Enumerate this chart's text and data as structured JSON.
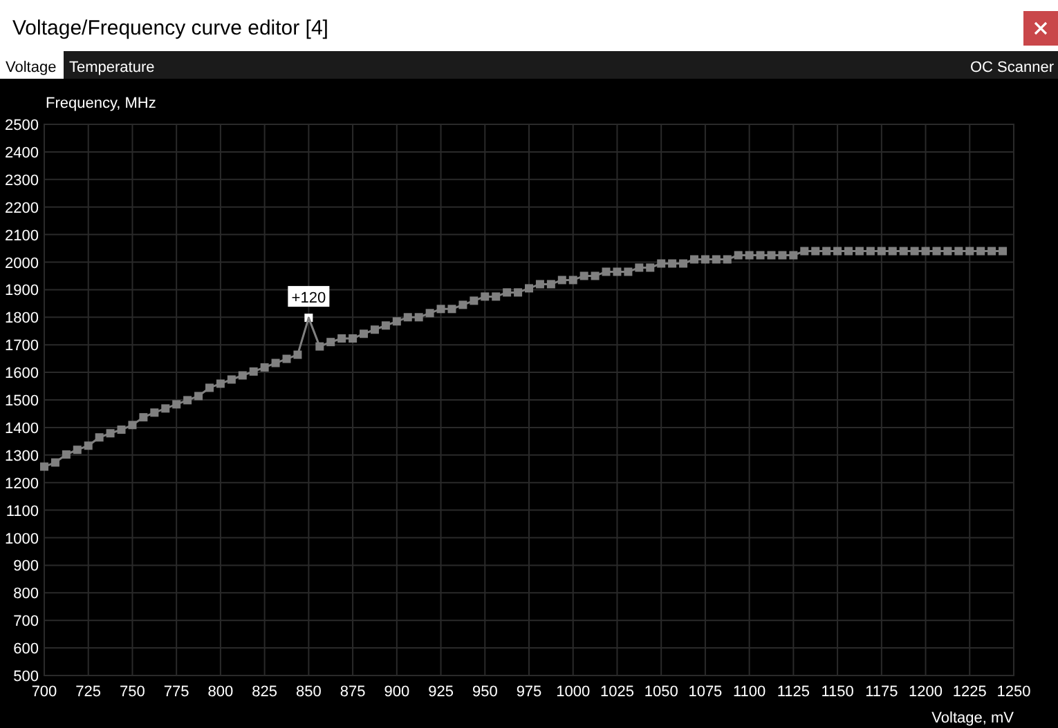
{
  "chart_data": {
    "type": "line",
    "title": "Voltage/Frequency curve editor [4]",
    "xlabel": "Voltage, mV",
    "ylabel": "Frequency, MHz",
    "annotations": [
      "Voltage",
      "Temperature",
      "OC Scanner",
      {
        "text": "+120",
        "x": 850,
        "y": 1798
      }
    ],
    "xlim": [
      700,
      1250
    ],
    "xticks": [
      700,
      725,
      750,
      775,
      800,
      825,
      850,
      875,
      900,
      925,
      950,
      975,
      1000,
      1025,
      1050,
      1075,
      1100,
      1125,
      1150,
      1175,
      1200,
      1225,
      1250
    ],
    "ylim": [
      500,
      2500
    ],
    "yticks": [
      500,
      600,
      700,
      800,
      900,
      1000,
      1100,
      1200,
      1300,
      1400,
      1500,
      1600,
      1700,
      1800,
      1900,
      2000,
      2100,
      2200,
      2300,
      2400,
      2500
    ],
    "grid": true,
    "marker": "square",
    "line_style": "solid",
    "x": [
      700,
      706.25,
      712.5,
      718.75,
      725,
      731.25,
      737.5,
      743.75,
      750,
      756.25,
      762.5,
      768.75,
      775,
      781.25,
      787.5,
      793.75,
      800,
      806.25,
      812.5,
      818.75,
      825,
      831.25,
      837.5,
      843.75,
      850,
      856.25,
      862.5,
      868.75,
      875,
      881.25,
      887.5,
      893.75,
      900,
      906.25,
      912.5,
      918.75,
      925,
      931.25,
      937.5,
      943.75,
      950,
      956.25,
      962.5,
      968.75,
      975,
      981.25,
      987.5,
      993.75,
      1000,
      1006.25,
      1012.5,
      1018.75,
      1025,
      1031.25,
      1037.5,
      1043.75,
      1050,
      1056.25,
      1062.5,
      1068.75,
      1075,
      1081.25,
      1087.5,
      1093.75,
      1100,
      1106.25,
      1112.5,
      1118.75,
      1125,
      1131.25,
      1137.5,
      1143.75,
      1150,
      1156.25,
      1162.5,
      1168.75,
      1175,
      1181.25,
      1187.5,
      1193.75,
      1200,
      1206.25,
      1212.5,
      1218.75,
      1225,
      1231.25,
      1237.5,
      1243.75
    ],
    "series": [
      {
        "color": "#808080",
        "values": [
          1258,
          1273,
          1302,
          1319,
          1334,
          1364,
          1379,
          1392,
          1409,
          1437,
          1454,
          1469,
          1484,
          1499,
          1514,
          1544,
          1559,
          1574,
          1589,
          1603,
          1618,
          1634,
          1649,
          1664,
          1798,
          1694,
          1710,
          1723,
          1723,
          1740,
          1755,
          1770,
          1785,
          1800,
          1800,
          1815,
          1830,
          1830,
          1845,
          1860,
          1875,
          1875,
          1890,
          1890,
          1905,
          1920,
          1920,
          1935,
          1935,
          1950,
          1950,
          1965,
          1965,
          1965,
          1980,
          1980,
          1995,
          1995,
          1995,
          2010,
          2010,
          2010,
          2010,
          2025,
          2025,
          2025,
          2025,
          2025,
          2025,
          2040,
          2040,
          2040,
          2040,
          2040,
          2040,
          2040,
          2040,
          2040,
          2040,
          2040,
          2040,
          2040,
          2040,
          2040,
          2040,
          2040,
          2040,
          2040
        ]
      }
    ]
  }
}
